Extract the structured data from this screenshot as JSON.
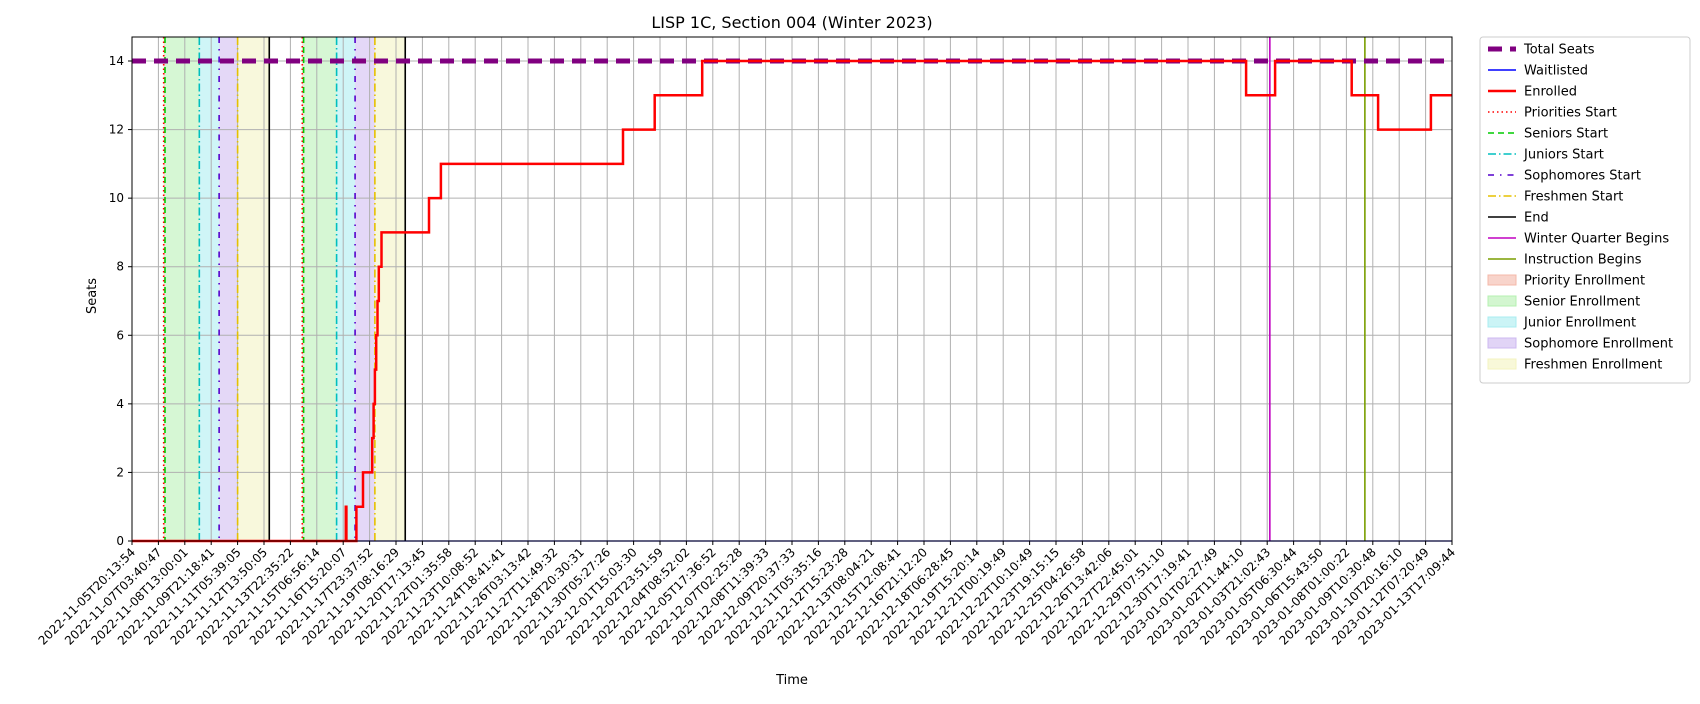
{
  "chart_data": {
    "type": "line",
    "title": "LISP 1C, Section 004 (Winter 2023)",
    "xlabel": "Time",
    "ylabel": "Seats",
    "ylim": [
      0,
      14.7
    ],
    "yticks": [
      0,
      2,
      4,
      6,
      8,
      10,
      12,
      14
    ],
    "grid": true,
    "legend_position": "outside-right",
    "x_tick_labels": [
      "2022-11-05T20:13:54",
      "2022-11-07T03:40:47",
      "2022-11-08T13:00:01",
      "2022-11-09T21:18:41",
      "2022-11-11T05:39:05",
      "2022-11-12T13:50:05",
      "2022-11-13T22:35:22",
      "2022-11-15T06:56:14",
      "2022-11-16T15:20:07",
      "2022-11-17T23:37:52",
      "2022-11-19T08:16:29",
      "2022-11-20T17:13:45",
      "2022-11-22T01:35:58",
      "2022-11-23T10:08:52",
      "2022-11-24T18:41:41",
      "2022-11-26T03:13:42",
      "2022-11-27T11:49:32",
      "2022-11-28T20:30:31",
      "2022-11-30T05:27:26",
      "2022-12-01T15:03:30",
      "2022-12-02T23:51:59",
      "2022-12-04T08:52:02",
      "2022-12-05T17:36:52",
      "2022-12-07T02:25:28",
      "2022-12-08T11:39:33",
      "2022-12-09T20:37:33",
      "2022-12-11T05:35:16",
      "2022-12-12T15:23:28",
      "2022-12-13T08:04:21",
      "2022-12-15T12:08:41",
      "2022-12-16T21:12:20",
      "2022-12-18T06:28:45",
      "2022-12-19T15:20:14",
      "2022-12-21T00:19:49",
      "2022-12-22T10:10:49",
      "2022-12-23T19:15:15",
      "2022-12-25T04:26:58",
      "2022-12-26T13:42:06",
      "2022-12-27T22:45:01",
      "2022-12-29T07:51:10",
      "2022-12-30T17:19:41",
      "2023-01-01T02:27:49",
      "2023-01-02T11:44:10",
      "2023-01-03T21:02:43",
      "2023-01-05T06:30:44",
      "2023-01-06T15:43:50",
      "2023-01-08T01:00:22",
      "2023-01-09T10:30:48",
      "2023-01-10T20:16:10",
      "2023-01-12T07:20:49",
      "2023-01-13T17:09:44"
    ],
    "series": [
      {
        "name": "Total Seats",
        "color": "#800080",
        "style": "dashed",
        "points": [
          [
            0,
            14
          ],
          [
            50,
            14
          ]
        ]
      },
      {
        "name": "Waitlisted",
        "color": "#0000ff",
        "style": "solid",
        "points": [
          [
            0,
            0
          ],
          [
            50,
            0
          ]
        ]
      },
      {
        "name": "Enrolled",
        "color": "#ff0000",
        "style": "solid",
        "points": [
          [
            0,
            0
          ],
          [
            8.1,
            0
          ],
          [
            8.1,
            1
          ],
          [
            8.12,
            1
          ],
          [
            8.12,
            0
          ],
          [
            8.3,
            0
          ],
          [
            8.5,
            0
          ],
          [
            8.5,
            1
          ],
          [
            8.75,
            1
          ],
          [
            8.75,
            2
          ],
          [
            9.1,
            2
          ],
          [
            9.1,
            3
          ],
          [
            9.15,
            3
          ],
          [
            9.15,
            4
          ],
          [
            9.2,
            4
          ],
          [
            9.2,
            5
          ],
          [
            9.25,
            5
          ],
          [
            9.25,
            6
          ],
          [
            9.3,
            6
          ],
          [
            9.3,
            7
          ],
          [
            9.35,
            7
          ],
          [
            9.35,
            8
          ],
          [
            9.45,
            8
          ],
          [
            9.45,
            9
          ],
          [
            11.25,
            9
          ],
          [
            11.25,
            10
          ],
          [
            11.7,
            10
          ],
          [
            11.7,
            11
          ],
          [
            18.6,
            11
          ],
          [
            18.6,
            12
          ],
          [
            19.8,
            12
          ],
          [
            19.8,
            13
          ],
          [
            21.6,
            13
          ],
          [
            21.6,
            14
          ],
          [
            42.2,
            14
          ],
          [
            42.2,
            13
          ],
          [
            43.3,
            13
          ],
          [
            43.3,
            14
          ],
          [
            46.2,
            14
          ],
          [
            46.2,
            13
          ],
          [
            47.2,
            13
          ],
          [
            47.2,
            12
          ],
          [
            49.2,
            12
          ],
          [
            49.2,
            13
          ],
          [
            50,
            13
          ]
        ]
      }
    ],
    "markers": [
      {
        "name": "Priorities Start",
        "color": "#ff0000",
        "style": "dotted",
        "x": [
          1.2,
          6.45
        ]
      },
      {
        "name": "Seniors Start",
        "color": "#00cc00",
        "style": "dashed",
        "x": [
          1.25,
          6.5
        ]
      },
      {
        "name": "Juniors Start",
        "color": "#00bfbf",
        "style": "dashdot",
        "x": [
          2.55,
          7.75
        ]
      },
      {
        "name": "Sophomores Start",
        "color": "#5500cc",
        "style": "dashdotsparse",
        "x": [
          3.3,
          8.45
        ]
      },
      {
        "name": "Freshmen Start",
        "color": "#e5c100",
        "style": "dashdot",
        "x": [
          4.0,
          9.2
        ]
      },
      {
        "name": "End",
        "color": "#000000",
        "style": "solid",
        "x": [
          5.2,
          10.35
        ]
      },
      {
        "name": "Winter Quarter Begins",
        "color": "#c000c0",
        "style": "solid",
        "x": [
          43.1
        ]
      },
      {
        "name": "Instruction Begins",
        "color": "#7a9e00",
        "style": "solid",
        "x": [
          46.7
        ]
      }
    ],
    "spans": [
      {
        "name": "Priority Enrollment",
        "color": "#f4b8a8",
        "ranges": [
          [
            1.2,
            1.25
          ],
          [
            6.45,
            6.5
          ]
        ]
      },
      {
        "name": "Senior Enrollment",
        "color": "#b5f0b0",
        "ranges": [
          [
            1.25,
            2.55
          ],
          [
            6.5,
            7.75
          ]
        ]
      },
      {
        "name": "Junior Enrollment",
        "color": "#a8ecf0",
        "ranges": [
          [
            2.55,
            3.3
          ],
          [
            7.75,
            8.45
          ]
        ]
      },
      {
        "name": "Sophomore Enrollment",
        "color": "#cdb8f0",
        "ranges": [
          [
            3.3,
            4.0
          ],
          [
            8.45,
            9.2
          ]
        ]
      },
      {
        "name": "Freshmen Enrollment",
        "color": "#f3f3c0",
        "ranges": [
          [
            4.0,
            5.2
          ],
          [
            9.2,
            10.35
          ]
        ]
      }
    ],
    "legend": [
      {
        "label": "Total Seats",
        "kind": "line",
        "color": "#800080",
        "style": "dashed-thick"
      },
      {
        "label": "Waitlisted",
        "kind": "line",
        "color": "#0000ff",
        "style": "solid"
      },
      {
        "label": "Enrolled",
        "kind": "line",
        "color": "#ff0000",
        "style": "solid-thick"
      },
      {
        "label": "Priorities Start",
        "kind": "line",
        "color": "#ff0000",
        "style": "dotted"
      },
      {
        "label": "Seniors Start",
        "kind": "line",
        "color": "#00cc00",
        "style": "dashed"
      },
      {
        "label": "Juniors Start",
        "kind": "line",
        "color": "#00bfbf",
        "style": "dashdot"
      },
      {
        "label": "Sophomores Start",
        "kind": "line",
        "color": "#5500cc",
        "style": "dashdotsparse"
      },
      {
        "label": "Freshmen Start",
        "kind": "line",
        "color": "#e5c100",
        "style": "dashdot"
      },
      {
        "label": "End",
        "kind": "line",
        "color": "#000000",
        "style": "solid"
      },
      {
        "label": "Winter Quarter Begins",
        "kind": "line",
        "color": "#c000c0",
        "style": "solid"
      },
      {
        "label": "Instruction Begins",
        "kind": "line",
        "color": "#7a9e00",
        "style": "solid"
      },
      {
        "label": "Priority Enrollment",
        "kind": "patch",
        "color": "#f4b8a8"
      },
      {
        "label": "Senior Enrollment",
        "kind": "patch",
        "color": "#b5f0b0"
      },
      {
        "label": "Junior Enrollment",
        "kind": "patch",
        "color": "#a8ecf0"
      },
      {
        "label": "Sophomore Enrollment",
        "kind": "patch",
        "color": "#cdb8f0"
      },
      {
        "label": "Freshmen Enrollment",
        "kind": "patch",
        "color": "#f3f3c0"
      }
    ]
  }
}
